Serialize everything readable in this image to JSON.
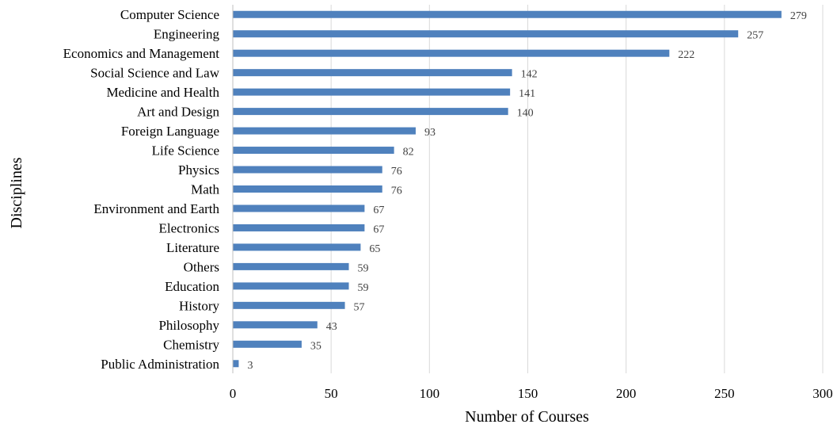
{
  "chart_data": {
    "type": "bar",
    "orientation": "horizontal",
    "categories": [
      "Computer Science",
      "Engineering",
      "Economics and Management",
      "Social Science and Law",
      "Medicine and Health",
      "Art and Design",
      "Foreign Language",
      "Life Science",
      "Physics",
      "Math",
      "Environment and Earth",
      "Electronics",
      "Literature",
      "Others",
      "Education",
      "History",
      "Philosophy",
      "Chemistry",
      "Public Administration"
    ],
    "values": [
      279,
      257,
      222,
      142,
      141,
      140,
      93,
      82,
      76,
      76,
      67,
      67,
      65,
      59,
      59,
      57,
      43,
      35,
      3
    ],
    "xlabel": "Number of Courses",
    "ylabel": "Disciplines",
    "xlim": [
      0,
      300
    ],
    "xticks": [
      0,
      50,
      100,
      150,
      200,
      250,
      300
    ],
    "grid": "vertical",
    "bar_color": "#4f81bd",
    "data_labels": true
  }
}
